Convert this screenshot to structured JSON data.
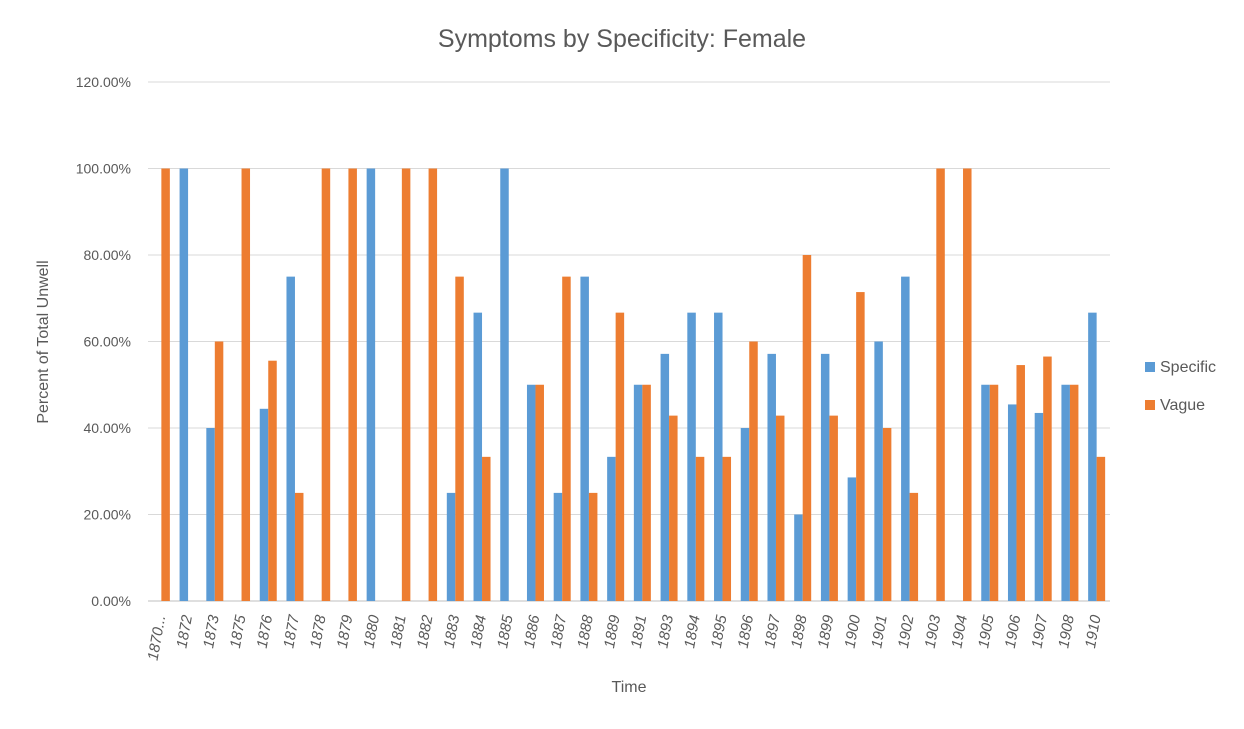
{
  "chart_data": {
    "type": "bar",
    "title": "Symptoms by Specificity: Female",
    "xlabel": "Time",
    "ylabel": "Percent of Total Unwell",
    "ylim": [
      0,
      1.2
    ],
    "yticks": [
      "0.00%",
      "20.00%",
      "40.00%",
      "60.00%",
      "80.00%",
      "100.00%",
      "120.00%"
    ],
    "grid": true,
    "legend_position": "right",
    "categories": [
      "1870...",
      "1872",
      "1873",
      "1875",
      "1876",
      "1877",
      "1878",
      "1879",
      "1880",
      "1881",
      "1882",
      "1883",
      "1884",
      "1885",
      "1886",
      "1887",
      "1888",
      "1889",
      "1891",
      "1893",
      "1894",
      "1895",
      "1896",
      "1897",
      "1898",
      "1899",
      "1900",
      "1901",
      "1902",
      "1903",
      "1904",
      "1905",
      "1906",
      "1907",
      "1908",
      "1910"
    ],
    "series": [
      {
        "name": "Specific",
        "color": "#5B9BD5",
        "values": [
          0,
          1.0,
          0.4,
          0,
          0.4444,
          0.75,
          0,
          0,
          1.0,
          0,
          0,
          0.25,
          0.6667,
          1.0,
          0.5,
          0.25,
          0.75,
          0.3333,
          0.5,
          0.5714,
          0.6667,
          0.6667,
          0.4,
          0.5714,
          0.2,
          0.5714,
          0.2857,
          0.6,
          0.75,
          0,
          0,
          0.5,
          0.4545,
          0.4348,
          0.5,
          0.6667
        ]
      },
      {
        "name": "Vague",
        "color": "#ED7D31",
        "values": [
          1.0,
          0,
          0.6,
          1.0,
          0.5556,
          0.25,
          1.0,
          1.0,
          0,
          1.0,
          1.0,
          0.75,
          0.3333,
          0,
          0.5,
          0.75,
          0.25,
          0.6667,
          0.5,
          0.4286,
          0.3333,
          0.3333,
          0.6,
          0.4286,
          0.8,
          0.4286,
          0.7143,
          0.4,
          0.25,
          1.0,
          1.0,
          0.5,
          0.5455,
          0.5652,
          0.5,
          0.3333
        ]
      }
    ]
  }
}
